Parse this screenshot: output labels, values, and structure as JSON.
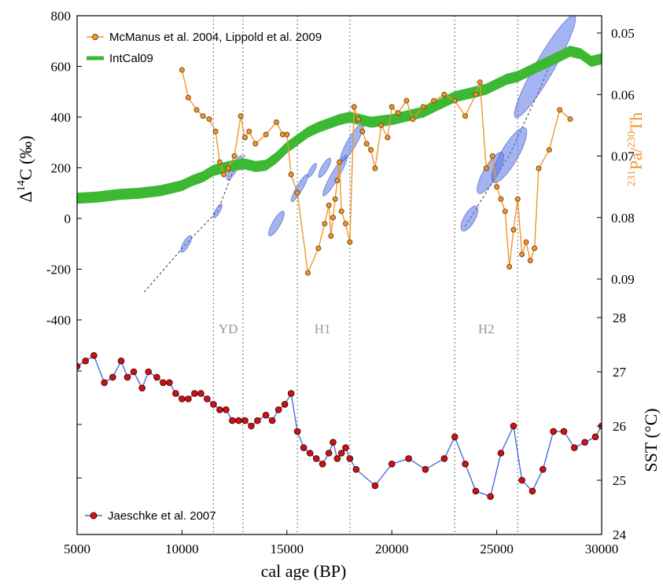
{
  "colors": {
    "mcmanus": "#f0962d",
    "mcmanus_marker": "#b8751e",
    "intcal": "#3cb832",
    "jaeschke_line": "#4a6fd6",
    "jaeschke_marker": "#c81414",
    "ellipse": "#5a74e6",
    "pa_axis": "#f0962d"
  },
  "chart_data": {
    "type": "line",
    "xlabel": "cal age (BP)",
    "xlim": [
      5000,
      30000
    ],
    "x_ticks": [
      5000,
      10000,
      15000,
      20000,
      25000,
      30000
    ],
    "panels": [
      {
        "name": "top",
        "y_left": {
          "label_main": "Δ",
          "label_sup": "14",
          "label_rest": "C (‰)",
          "ylim": [
            -400,
            800
          ],
          "ticks": [
            -400,
            -200,
            0,
            200,
            400,
            600,
            800
          ]
        },
        "y_right": {
          "label_sup1": "231",
          "label_mid": "Pa/",
          "label_sup2": "230",
          "label_end": "Th",
          "inverted": true,
          "ylim": [
            0.045,
            0.095
          ],
          "ticks": [
            "0.05",
            "0.06",
            "0.07",
            "0.08",
            "0.09"
          ]
        },
        "series": [
          {
            "name": "McManus et al. 2004, Lippold et al. 2009",
            "axis": "right",
            "x": [
              10000,
              10300,
              10700,
              11000,
              11300,
              11600,
              11800,
              12000,
              12200,
              12500,
              12800,
              13000,
              13200,
              13500,
              14000,
              14500,
              14800,
              15000,
              15200,
              15500,
              16000,
              16500,
              16800,
              17000,
              17100,
              17200,
              17300,
              17400,
              17500,
              17600,
              17800,
              18000,
              18200,
              18400,
              18600,
              18800,
              19000,
              19200,
              19500,
              19800,
              20000,
              20300,
              20700,
              21000,
              21500,
              22000,
              22500,
              23000,
              23500,
              24000,
              24200,
              24500,
              24800,
              25000,
              25200,
              25400,
              25600,
              25800,
              26000,
              26200,
              26400,
              26600,
              26800,
              27000,
              27500,
              28000,
              28500
            ],
            "y": [
              0.056,
              0.0605,
              0.0625,
              0.0635,
              0.064,
              0.066,
              0.071,
              0.073,
              0.072,
              0.07,
              0.0635,
              0.067,
              0.066,
              0.068,
              0.0665,
              0.0645,
              0.0665,
              0.0665,
              0.073,
              0.076,
              0.089,
              0.085,
              0.081,
              0.078,
              0.083,
              0.08,
              0.077,
              0.074,
              0.071,
              0.079,
              0.081,
              0.084,
              0.062,
              0.064,
              0.066,
              0.068,
              0.069,
              0.072,
              0.065,
              0.067,
              0.062,
              0.063,
              0.061,
              0.064,
              0.062,
              0.061,
              0.06,
              0.061,
              0.0635,
              0.06,
              0.058,
              0.072,
              0.07,
              0.075,
              0.077,
              0.079,
              0.088,
              0.082,
              0.077,
              0.086,
              0.084,
              0.087,
              0.085,
              0.072,
              0.069,
              0.0625,
              0.064
            ]
          },
          {
            "name": "IntCal09",
            "axis": "left",
            "x": [
              5000,
              6000,
              7000,
              8000,
              9000,
              10000,
              10500,
              11000,
              11500,
              12000,
              12500,
              13000,
              13500,
              14000,
              14500,
              15000,
              15500,
              16000,
              16500,
              17000,
              17500,
              18000,
              18500,
              19000,
              19500,
              20000,
              20500,
              21000,
              21500,
              22000,
              22500,
              23000,
              23500,
              24000,
              24500,
              25000,
              25500,
              26000,
              26500,
              27000,
              27500,
              28000,
              28500,
              29000,
              29500,
              30000
            ],
            "y": [
              80,
              85,
              95,
              100,
              110,
              130,
              150,
              165,
              190,
              200,
              210,
              215,
              205,
              210,
              240,
              280,
              310,
              340,
              360,
              375,
              390,
              400,
              390,
              380,
              385,
              390,
              400,
              410,
              420,
              440,
              460,
              480,
              490,
              500,
              510,
              530,
              550,
              560,
              580,
              600,
              620,
              640,
              660,
              650,
              620,
              630
            ]
          }
        ],
        "ellipses": [
          {
            "x": 10200,
            "y": -100
          },
          {
            "x": 11700,
            "y": 30
          },
          {
            "x": 12500,
            "y": 200
          },
          {
            "x": 14500,
            "y": -20
          },
          {
            "x": 15600,
            "y": 120
          },
          {
            "x": 16200,
            "y": 190
          },
          {
            "x": 16800,
            "y": 200
          },
          {
            "x": 17300,
            "y": 170
          },
          {
            "x": 18100,
            "y": 300
          },
          {
            "x": 23700,
            "y": 0
          },
          {
            "x": 24700,
            "y": 180
          },
          {
            "x": 25600,
            "y": 250
          },
          {
            "x": 27300,
            "y": 600
          }
        ]
      },
      {
        "name": "bottom",
        "y_right": {
          "label": "SST (°C)",
          "ylim": [
            24,
            28
          ],
          "ticks": [
            24,
            25,
            26,
            27,
            28
          ]
        },
        "series": [
          {
            "name": "Jaeschke et al. 2007",
            "x": [
              5000,
              5400,
              5800,
              6300,
              6700,
              7100,
              7400,
              7700,
              8100,
              8400,
              8800,
              9100,
              9400,
              9700,
              10000,
              10300,
              10600,
              10900,
              11200,
              11500,
              11800,
              12100,
              12400,
              12700,
              13000,
              13300,
              13600,
              14000,
              14300,
              14600,
              14900,
              15200,
              15500,
              15800,
              16100,
              16400,
              16700,
              17000,
              17200,
              17400,
              17600,
              17800,
              18000,
              18300,
              19200,
              20000,
              20800,
              21600,
              22500,
              23000,
              23500,
              24000,
              24700,
              25200,
              25800,
              26200,
              26700,
              27200,
              27700,
              28200,
              28700,
              29200,
              29700,
              30000
            ],
            "y": [
              27.1,
              27.2,
              27.3,
              26.8,
              26.9,
              27.2,
              26.9,
              27.0,
              26.7,
              27.0,
              26.9,
              26.8,
              26.8,
              26.6,
              26.5,
              26.5,
              26.6,
              26.6,
              26.5,
              26.4,
              26.3,
              26.3,
              26.1,
              26.1,
              26.1,
              26.0,
              26.1,
              26.2,
              26.1,
              26.3,
              26.4,
              26.6,
              25.9,
              25.6,
              25.5,
              25.4,
              25.3,
              25.5,
              25.7,
              25.4,
              25.5,
              25.6,
              25.4,
              25.2,
              24.9,
              25.3,
              25.4,
              25.2,
              25.4,
              25.8,
              25.3,
              24.8,
              24.7,
              25.5,
              26.0,
              25.0,
              24.8,
              25.2,
              25.9,
              25.9,
              25.6,
              25.7,
              25.8,
              26.0
            ]
          }
        ]
      }
    ],
    "event_lines_x": [
      11500,
      12900,
      15500,
      18000,
      23000,
      26000
    ],
    "event_labels": [
      {
        "text": "YD",
        "x": 12200
      },
      {
        "text": "H1",
        "x": 16700
      },
      {
        "text": "H2",
        "x": 24500
      }
    ],
    "legend": {
      "top_entries": [
        "McManus et al. 2004, Lippold et al. 2009",
        "IntCal09"
      ],
      "bottom_entries": [
        "Jaeschke et al. 2007"
      ],
      "placement_top": "top-left",
      "placement_bottom": "bottom-left"
    }
  }
}
